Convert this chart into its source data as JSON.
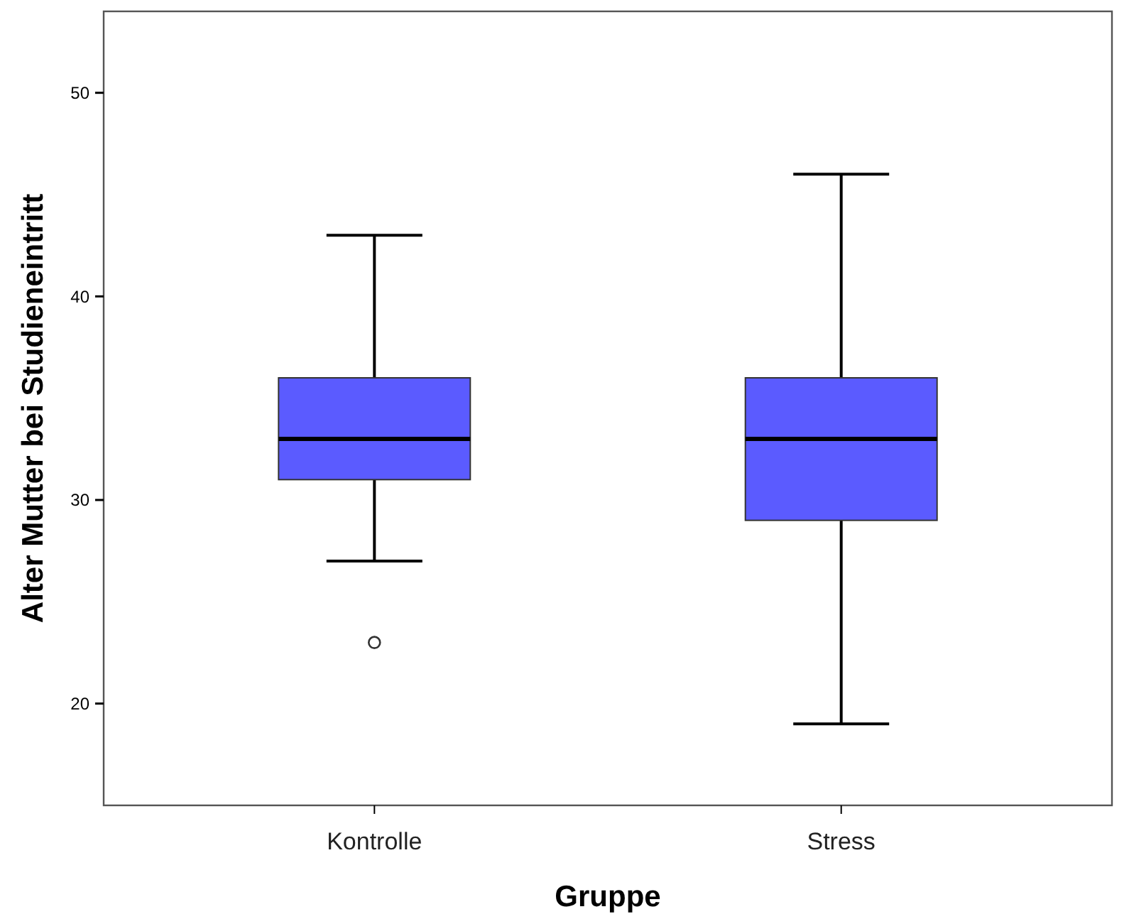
{
  "chart_data": {
    "type": "box",
    "xlabel": "Gruppe",
    "ylabel": "Alter Mutter bei Studieneintritt",
    "categories": [
      "Kontrolle",
      "Stress"
    ],
    "boxes": [
      {
        "low": 27,
        "q1": 31,
        "median": 33,
        "q3": 36,
        "high": 43,
        "outliers": [
          23
        ]
      },
      {
        "low": 19,
        "q1": 29,
        "median": 33,
        "q3": 36,
        "high": 46
      }
    ],
    "color": "#5b5bff",
    "ylim": [
      15,
      54
    ],
    "yticks": [
      20,
      30,
      40,
      50
    ],
    "grid": false
  }
}
